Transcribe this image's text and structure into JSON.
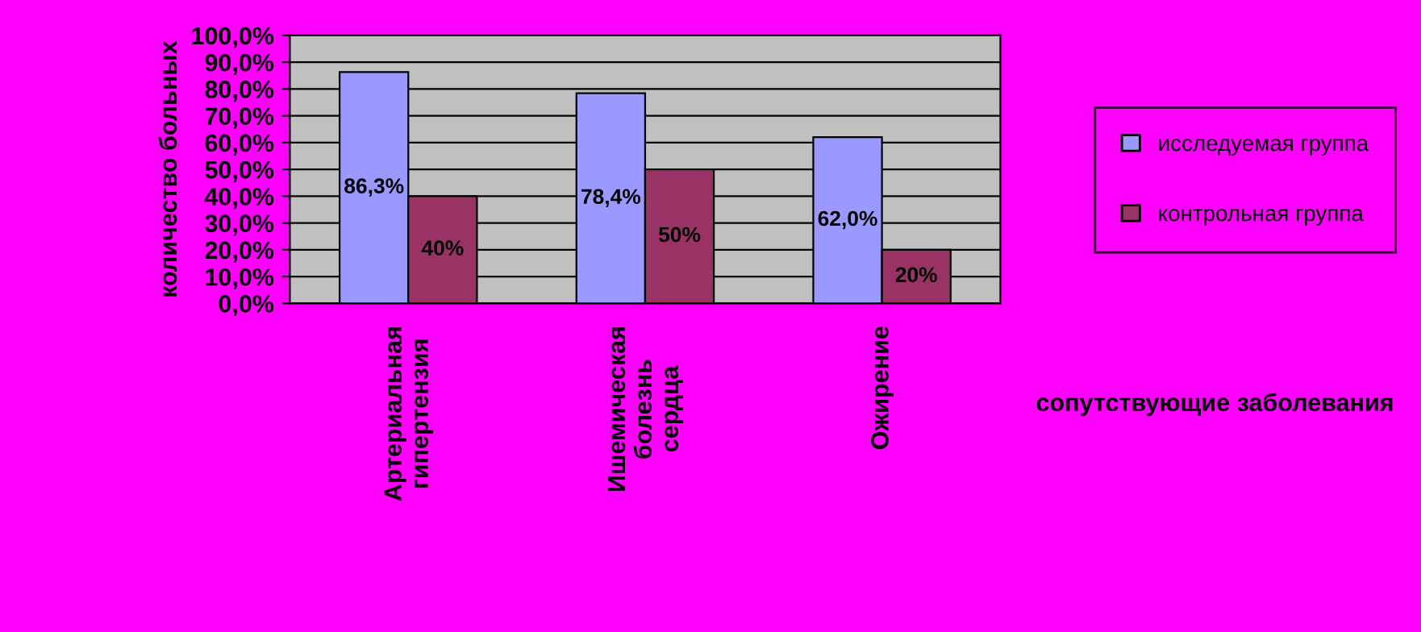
{
  "chart_data": {
    "type": "bar",
    "xlabel": "сопутствующие заболевания",
    "ylabel": "количество больных",
    "categories": [
      "Артериальная\nгипертензия",
      "Ишемическая\nболезнь\nсердца",
      "Ожирение"
    ],
    "series": [
      {
        "name": "исследуемая группа",
        "color": "#9999ff",
        "values": [
          86.3,
          78.4,
          62.0
        ],
        "value_labels": [
          "86,3%",
          "78,4%",
          "62,0%"
        ]
      },
      {
        "name": "контрольная группа",
        "color": "#993366",
        "values": [
          40,
          50,
          20
        ],
        "value_labels": [
          "40%",
          "50%",
          "20%"
        ]
      }
    ],
    "ylim": [
      0,
      100
    ],
    "yticks": [
      {
        "value": 0,
        "label": "0,0%"
      },
      {
        "value": 10,
        "label": "10,0%"
      },
      {
        "value": 20,
        "label": "20,0%"
      },
      {
        "value": 30,
        "label": "30,0%"
      },
      {
        "value": 40,
        "label": "40,0%"
      },
      {
        "value": 50,
        "label": "50,0%"
      },
      {
        "value": 60,
        "label": "60,0%"
      },
      {
        "value": 70,
        "label": "70,0%"
      },
      {
        "value": 80,
        "label": "80,0%"
      },
      {
        "value": 90,
        "label": "90,0%"
      },
      {
        "value": 100,
        "label": "100,0%"
      }
    ],
    "grid": "y",
    "legend": "right"
  }
}
